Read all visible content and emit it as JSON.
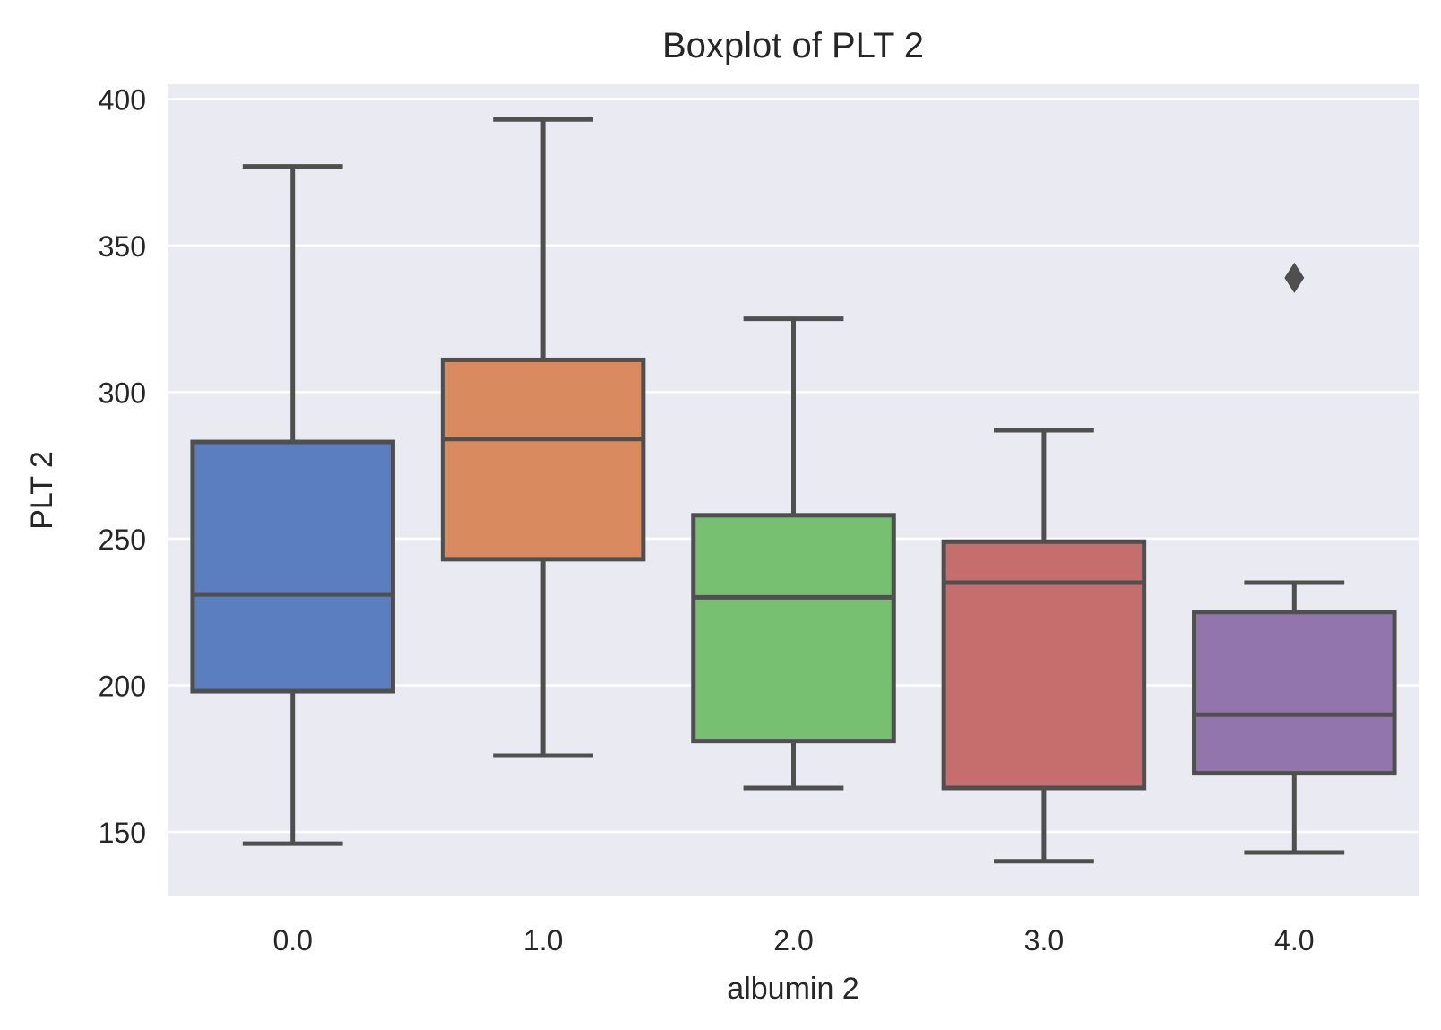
{
  "chart_data": {
    "type": "box",
    "title": "Boxplot of PLT 2",
    "xlabel": "albumin 2",
    "ylabel": "PLT 2",
    "ylim": [
      128,
      405
    ],
    "yticks": [
      150,
      200,
      250,
      300,
      350,
      400
    ],
    "grid": true,
    "categories": [
      "0.0",
      "1.0",
      "2.0",
      "3.0",
      "4.0"
    ],
    "boxes": [
      {
        "category": "0.0",
        "whislo": 146,
        "q1": 198,
        "median": 231,
        "q3": 283,
        "whishi": 377,
        "fliers": [],
        "color": "#5b7ec0"
      },
      {
        "category": "1.0",
        "whislo": 176,
        "q1": 243,
        "median": 284,
        "q3": 311,
        "whishi": 393,
        "fliers": [],
        "color": "#d98a5f"
      },
      {
        "category": "2.0",
        "whislo": 165,
        "q1": 181,
        "median": 230,
        "q3": 258,
        "whishi": 325,
        "fliers": [],
        "color": "#77c072"
      },
      {
        "category": "3.0",
        "whislo": 140,
        "q1": 165,
        "median": 235,
        "q3": 249,
        "whishi": 287,
        "fliers": [],
        "color": "#c66d6d"
      },
      {
        "category": "4.0",
        "whislo": 143,
        "q1": 170,
        "median": 190,
        "q3": 225,
        "whishi": 235,
        "fliers": [
          339
        ],
        "color": "#9375ad"
      }
    ],
    "colors": {
      "plot_background": "#eaeaf2",
      "grid": "#ffffff",
      "box_edge": "#4f4f4f",
      "text": "#262626"
    }
  }
}
